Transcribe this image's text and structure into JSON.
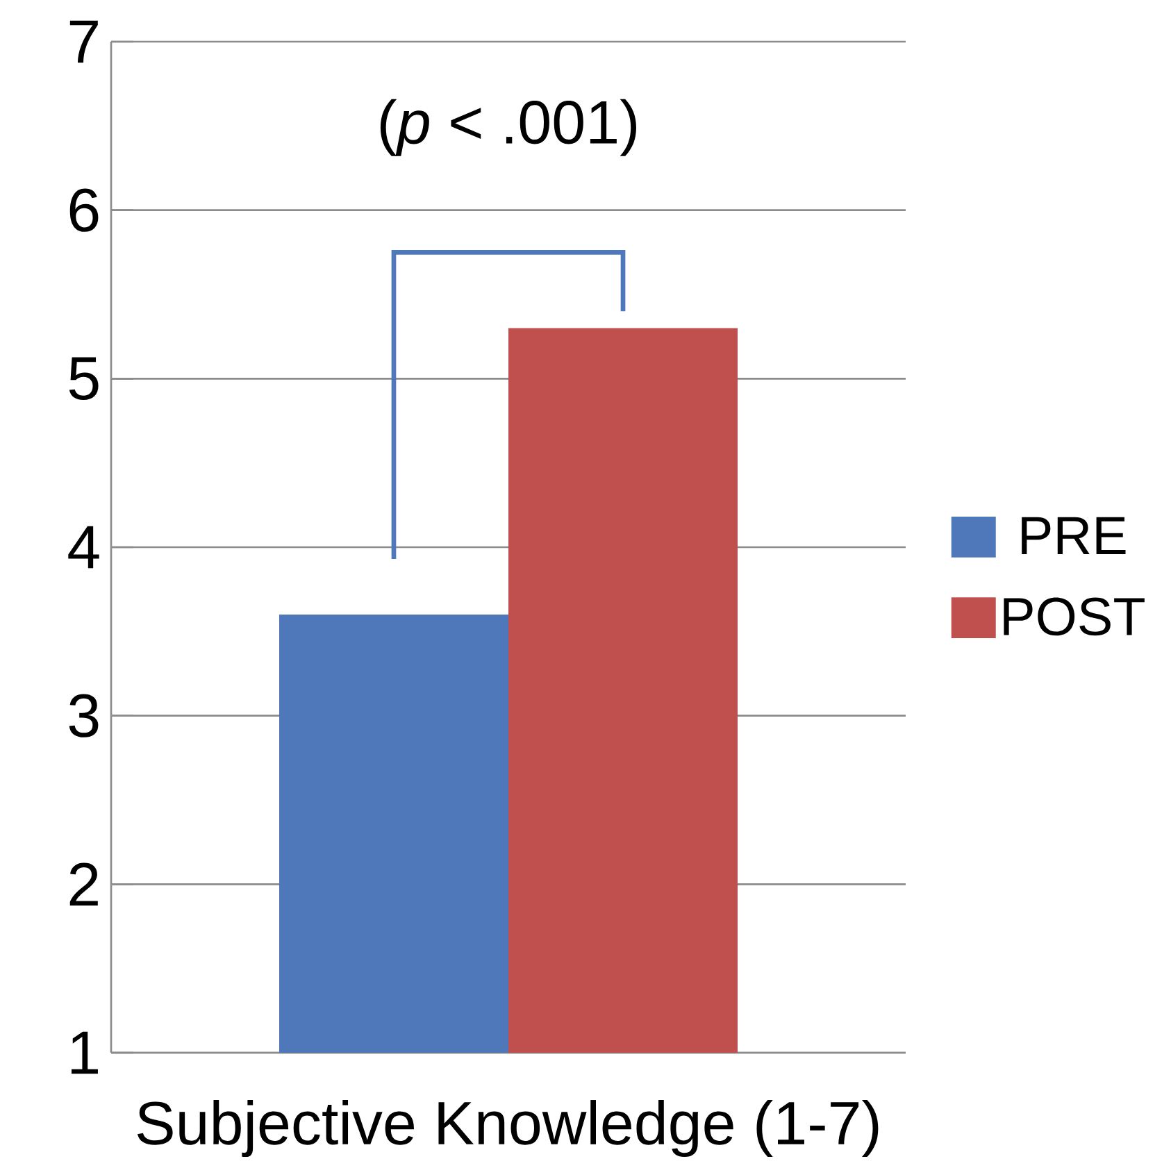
{
  "chart_data": {
    "type": "bar",
    "categories": [
      "Subjective Knowledge (1-7)"
    ],
    "series": [
      {
        "name": "PRE",
        "color": "#4f78bb",
        "values": [
          3.6
        ]
      },
      {
        "name": "POST",
        "color": "#c0504d",
        "values": [
          5.3
        ]
      }
    ],
    "ylim": [
      1,
      7
    ],
    "yticks": [
      1,
      2,
      3,
      4,
      5,
      6,
      7
    ],
    "grid": "y",
    "legend": "right",
    "annotations": [
      "(*p* < .001)"
    ]
  }
}
